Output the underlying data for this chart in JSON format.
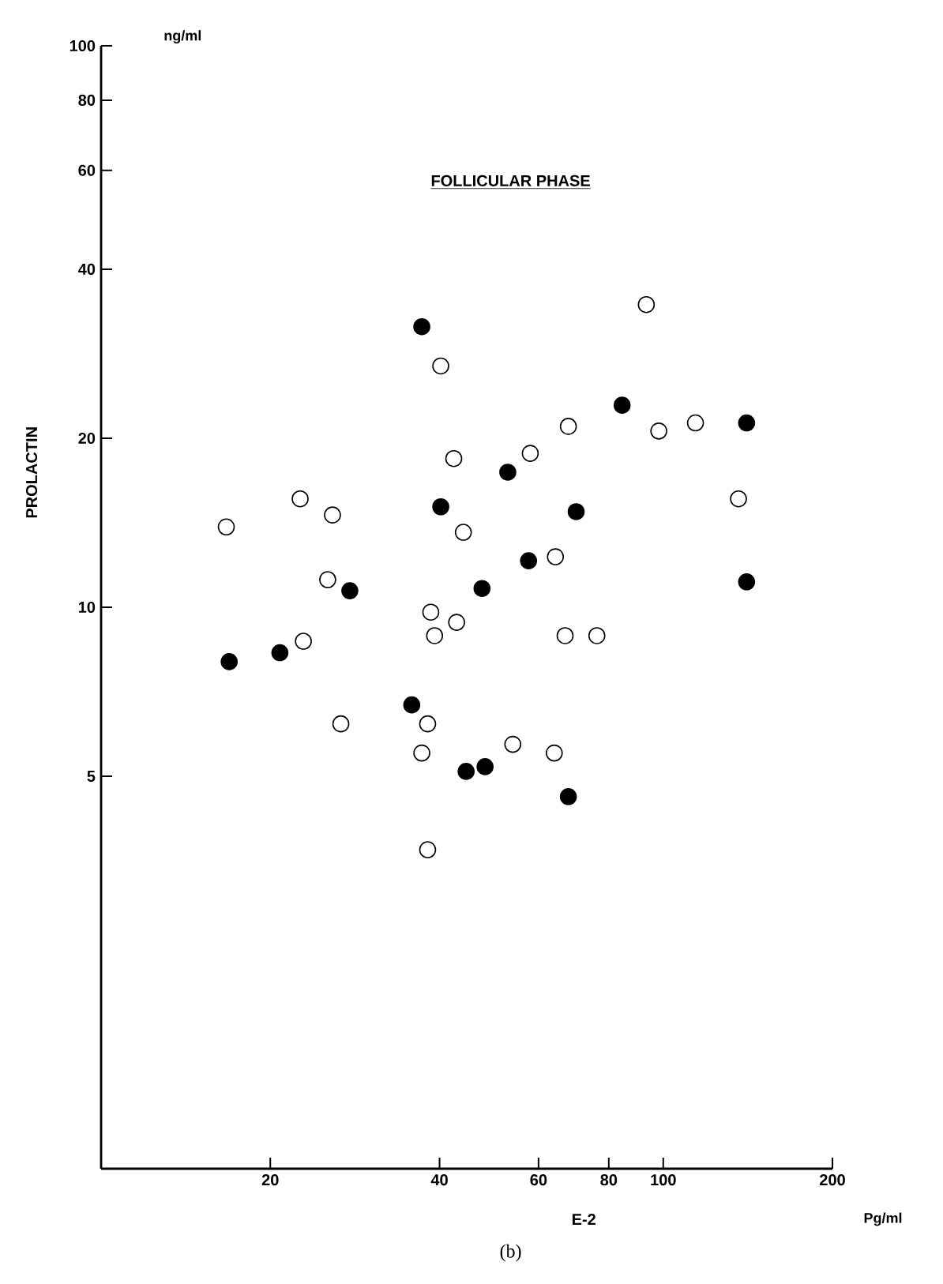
{
  "chart_data": {
    "type": "scatter",
    "title": "FOLLICULAR PHASE",
    "xlabel": "E-2",
    "ylabel": "PROLACTIN",
    "annotations": [
      "ng/ml",
      "Pg/ml",
      "(b)"
    ],
    "log": "xy",
    "marker": "circle",
    "xlim": [
      10,
      200
    ],
    "ylim": [
      1,
      100
    ],
    "xticks": [
      20,
      40,
      60,
      80,
      100,
      200
    ],
    "yticks": [
      5,
      10,
      20,
      40,
      60,
      80,
      100
    ],
    "grid": false,
    "series": [
      {
        "color": "#000000",
        "x": [
          16.9,
          20.8,
          27.7,
          35.7,
          37.2,
          40.2,
          44.6,
          48.2,
          47.6,
          52.9,
          57.6,
          70.0,
          67.8,
          84.5,
          140.7,
          140.7
        ],
        "values": [
          8.0,
          8.3,
          10.7,
          6.7,
          31.6,
          15.1,
          5.1,
          5.2,
          10.8,
          17.4,
          12.1,
          14.8,
          4.6,
          22.9,
          21.3,
          11.1
        ]
      },
      {
        "color": "#ffffff",
        "x": [
          16.7,
          22.6,
          25.8,
          25.3,
          22.9,
          40.2,
          42.4,
          38.6,
          42.9,
          39.2,
          44.1,
          26.7,
          38.1,
          37.2,
          38.1,
          93.3,
          67.8,
          98.2,
          114.1,
          58.0,
          136.1,
          64.3,
          66.9,
          76.2,
          54.0,
          64.0
        ],
        "values": [
          13.9,
          15.6,
          14.6,
          11.2,
          8.7,
          26.9,
          18.4,
          9.8,
          9.4,
          8.9,
          13.6,
          6.2,
          6.2,
          5.5,
          3.7,
          34.6,
          21.0,
          20.6,
          21.3,
          18.8,
          15.6,
          12.3,
          8.9,
          8.9,
          5.7,
          5.5
        ]
      }
    ]
  }
}
